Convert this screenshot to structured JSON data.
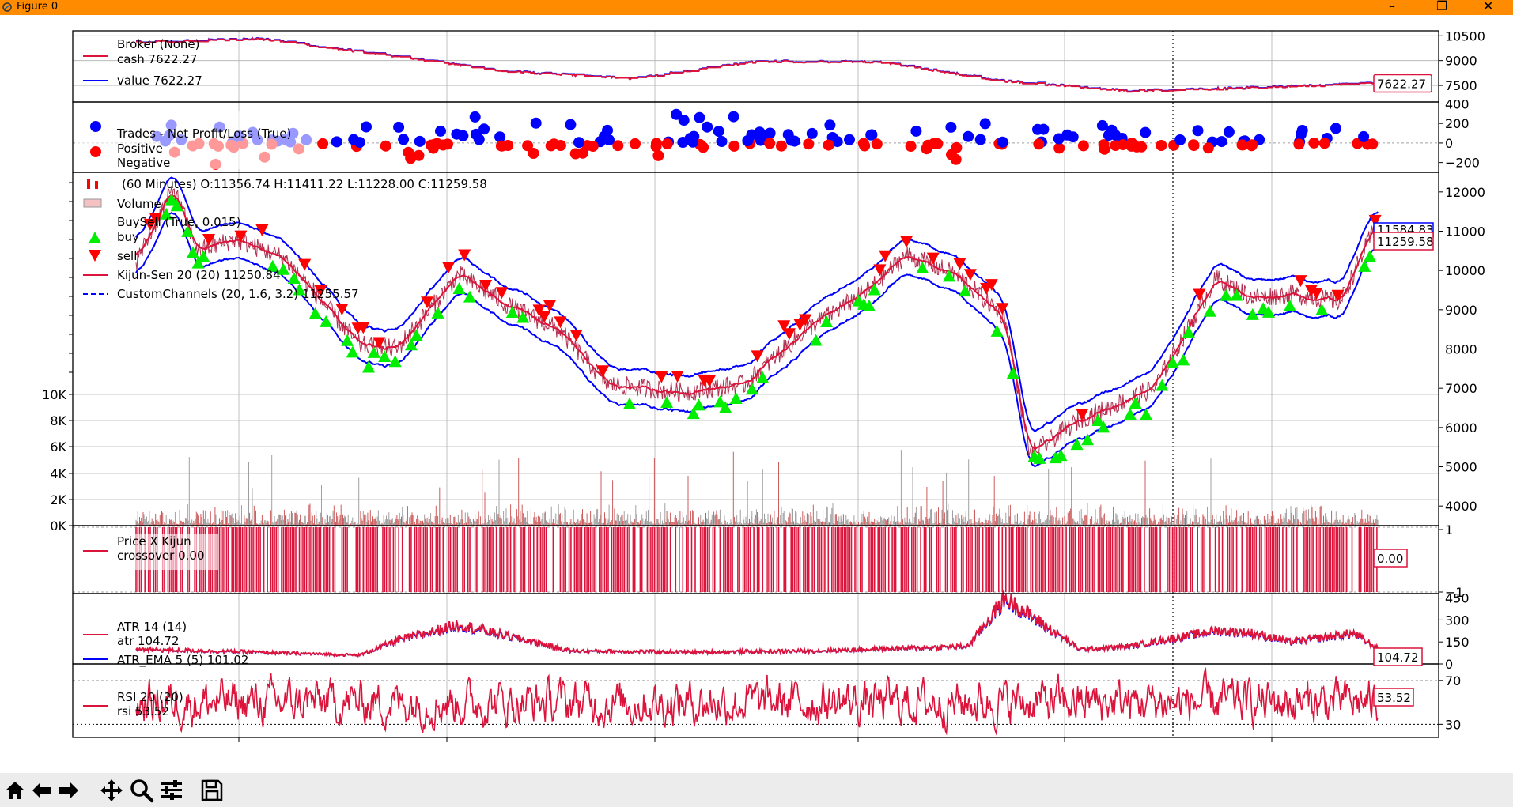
{
  "window": {
    "title": "Figure 0"
  },
  "colors": {
    "titlebar": "#ff8c00",
    "red": "#dc143c",
    "blue": "#0000ff",
    "green": "#00ee00"
  },
  "toolbar": {
    "buttons": [
      "home-icon",
      "back-icon",
      "forward-icon",
      "pan-icon",
      "zoom-icon",
      "configure-subplots-icon",
      "save-icon"
    ]
  },
  "chart_data": [
    {
      "type": "line",
      "panel": "broker",
      "legend_title": "Broker (None)",
      "series": [
        {
          "name": "cash 7622.27",
          "color": "#dc143c"
        },
        {
          "name": "value 7622.27",
          "color": "#0000ff"
        }
      ],
      "x": [
        0,
        10,
        20,
        30,
        40,
        50,
        60,
        70,
        80,
        90,
        100
      ],
      "y": [
        10100,
        10300,
        9350,
        8350,
        7900,
        8950,
        8900,
        7750,
        7150,
        7350,
        7622.27
      ],
      "yticks": [
        "10500",
        "9000",
        "7500"
      ],
      "ylim": [
        6500,
        10800
      ],
      "last_value": "7622.27"
    },
    {
      "type": "scatter",
      "panel": "trades",
      "legend_title": "Trades - Net Profit/Loss (True)",
      "series": [
        {
          "name": "Positive",
          "color": "#0000ff"
        },
        {
          "name": "Negative",
          "color": "#ff0000"
        }
      ],
      "yticks": [
        "400",
        "200",
        "0",
        "−200"
      ],
      "ylim": [
        -300,
        420
      ]
    },
    {
      "type": "line",
      "panel": "price",
      "legend": [
        "(60 Minutes) O:11356.74 H:11411.22 L:11228.00 C:11259.58",
        "Volume",
        "BuySell (True, 0.015)",
        "buy",
        "sell",
        "Kijun-Sen 20 (20) 11250.84",
        "CustomChannels (20, 1.6, 3.2) 11255.57"
      ],
      "x": [
        0,
        3,
        5,
        8,
        12,
        18,
        21,
        26,
        30,
        34,
        38,
        44,
        49,
        54,
        59,
        62,
        66,
        70,
        72,
        76,
        82,
        87,
        90,
        93,
        97,
        100
      ],
      "close": [
        10200,
        12100,
        10500,
        10800,
        10300,
        8100,
        8000,
        9900,
        9100,
        8500,
        7100,
        6900,
        7100,
        8500,
        9500,
        10400,
        9900,
        8800,
        5300,
        6200,
        7000,
        9800,
        9300,
        9400,
        9200,
        11259.58
      ],
      "yticks": [
        "12000",
        "11000",
        "10000",
        "9000",
        "8000",
        "7000",
        "6000",
        "5000",
        "4000"
      ],
      "ylim": [
        3500,
        12500
      ],
      "volume_ticks": [
        "10K",
        "8K",
        "6K",
        "4K",
        "2K",
        "0K"
      ],
      "last_value": "11259.58",
      "last_value_stacked": "11584.83"
    },
    {
      "type": "bar",
      "panel": "crossover",
      "legend_title": "Price X Kijun",
      "series": [
        {
          "name": "crossover 0.00",
          "color": "#dc143c"
        }
      ],
      "yticks": [
        "1",
        "−1"
      ],
      "last_value": "0.00"
    },
    {
      "type": "line",
      "panel": "atr",
      "legend_title": "ATR 14 (14)",
      "series": [
        {
          "name": "atr 104.72",
          "color": "#dc143c"
        },
        {
          "name": "ATR_EMA 5 (5) 101.02",
          "color": "#0000ff"
        }
      ],
      "x": [
        0,
        10,
        18,
        21,
        26,
        35,
        45,
        55,
        67,
        70,
        76,
        80,
        87,
        90,
        93,
        98,
        100
      ],
      "y": [
        100,
        80,
        60,
        160,
        270,
        90,
        80,
        90,
        120,
        450,
        100,
        120,
        230,
        210,
        150,
        210,
        104.72
      ],
      "yticks": [
        "450",
        "300",
        "150",
        "0"
      ],
      "ylim": [
        0,
        480
      ],
      "last_value": "104.72"
    },
    {
      "type": "line",
      "panel": "rsi",
      "legend_title": "RSI 20 (20)",
      "series": [
        {
          "name": "rsi 53.52",
          "color": "#dc143c"
        }
      ],
      "yticks": [
        "70",
        "30"
      ],
      "ylim": [
        18,
        85
      ],
      "last_value": "53.52"
    }
  ]
}
